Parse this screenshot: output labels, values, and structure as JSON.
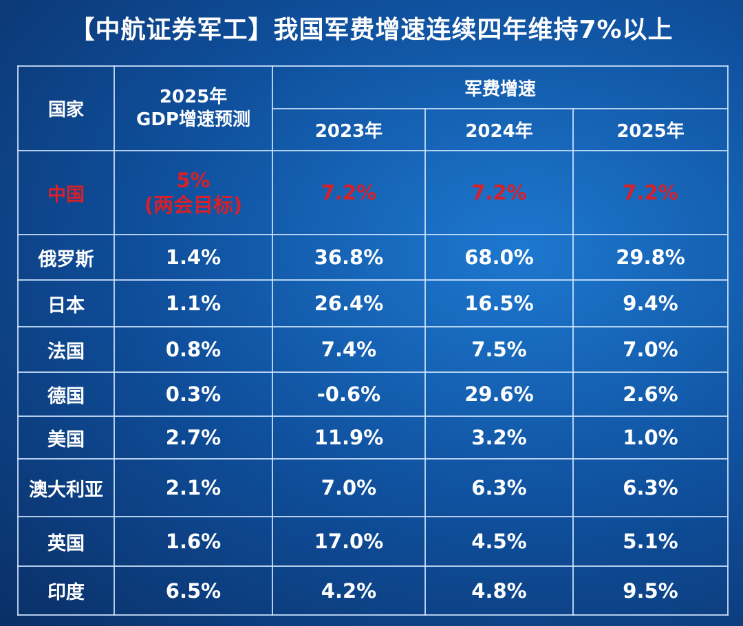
{
  "title": "【中航证券军工】我国军费增速连续四年维持7%以上",
  "table": {
    "header": {
      "country": "国家",
      "gdp": [
        "2025年",
        "GDP增速预测"
      ],
      "group": "军费增速",
      "years": [
        "2023年",
        "2024年",
        "2025年"
      ]
    },
    "rows": [
      [
        "中国",
        [
          "5%",
          "(两会目标)"
        ],
        "7.2%",
        "7.2%",
        "7.2%"
      ],
      [
        "俄罗斯",
        "1.4%",
        "36.8%",
        "68.0%",
        "29.8%"
      ],
      [
        "日本",
        "1.1%",
        "26.4%",
        "16.5%",
        "9.4%"
      ],
      [
        "法国",
        "0.8%",
        "7.4%",
        "7.5%",
        "7.0%"
      ],
      [
        "德国",
        "0.3%",
        "-0.6%",
        "29.6%",
        "2.6%"
      ],
      [
        "美国",
        "2.7%",
        "11.9%",
        "3.2%",
        "1.0%"
      ],
      [
        "澳大利亚",
        "2.1%",
        "7.0%",
        "6.3%",
        "6.3%"
      ],
      [
        "英国",
        "1.6%",
        "17.0%",
        "4.5%",
        "5.1%"
      ],
      [
        "印度",
        "6.5%",
        "4.2%",
        "4.8%",
        "9.5%"
      ]
    ]
  }
}
